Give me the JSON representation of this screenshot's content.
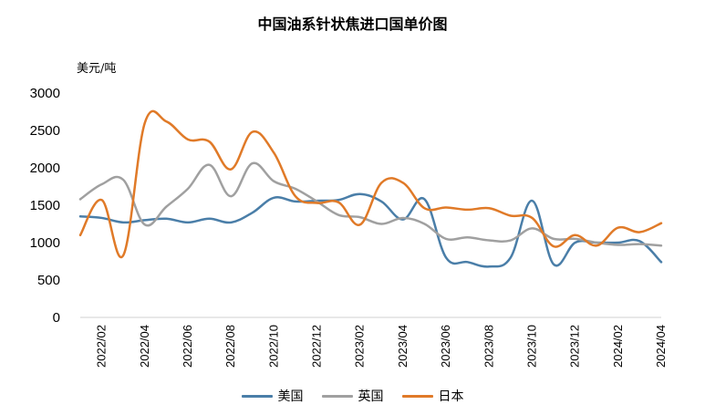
{
  "chart_data": {
    "type": "line",
    "title": "中国油系针状焦进口国单价图",
    "ylabel": "美元/吨",
    "xlabel": "",
    "ylim": [
      0,
      3000
    ],
    "yticks": [
      0,
      500,
      1000,
      1500,
      2000,
      2500,
      3000
    ],
    "grid": false,
    "legend_position": "bottom",
    "x": [
      "2022/01",
      "2022/02",
      "2022/03",
      "2022/04",
      "2022/05",
      "2022/06",
      "2022/07",
      "2022/08",
      "2022/09",
      "2022/10",
      "2022/11",
      "2022/12",
      "2023/01",
      "2023/02",
      "2023/03",
      "2023/04",
      "2023/05",
      "2023/06",
      "2023/07",
      "2023/08",
      "2023/09",
      "2023/10",
      "2023/11",
      "2023/12",
      "2024/01",
      "2024/02",
      "2024/03",
      "2024/04"
    ],
    "xtick_labels": [
      "2022/02",
      "2022/04",
      "2022/06",
      "2022/08",
      "2022/10",
      "2022/12",
      "2023/02",
      "2023/04",
      "2023/06",
      "2023/08",
      "2023/10",
      "2023/12",
      "2024/02",
      "2024/04"
    ],
    "series": [
      {
        "name": "美国",
        "color": "#4a7ea8",
        "values": [
          1350,
          1330,
          1270,
          1300,
          1320,
          1270,
          1320,
          1270,
          1400,
          1600,
          1550,
          1560,
          1570,
          1650,
          1550,
          1310,
          1580,
          800,
          740,
          680,
          800,
          1560,
          710,
          1000,
          1000,
          1000,
          1020,
          740
        ]
      },
      {
        "name": "英国",
        "color": "#a0a0a0",
        "values": [
          1580,
          1780,
          1840,
          1240,
          1480,
          1720,
          2040,
          1620,
          2060,
          1820,
          1720,
          1550,
          1370,
          1340,
          1250,
          1330,
          1250,
          1050,
          1070,
          1030,
          1030,
          1190,
          1050,
          1050,
          1000,
          970,
          980,
          960
        ]
      },
      {
        "name": "日本",
        "color": "#e07a28",
        "values": [
          1100,
          1570,
          830,
          2600,
          2620,
          2380,
          2350,
          1980,
          2480,
          2200,
          1620,
          1530,
          1540,
          1240,
          1800,
          1800,
          1460,
          1470,
          1440,
          1460,
          1360,
          1330,
          950,
          1100,
          960,
          1200,
          1140,
          1260
        ]
      }
    ]
  }
}
